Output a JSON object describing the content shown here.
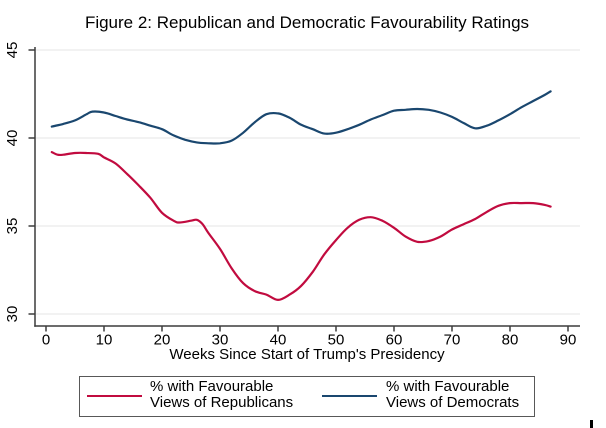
{
  "chart_data": {
    "type": "line",
    "title": "Figure 2: Republican and Democratic Favourability Ratings",
    "xlabel": "Weeks Since Start of Trump's Presidency",
    "ylabel": "",
    "xlim": [
      0,
      92
    ],
    "ylim": [
      29.3,
      45.3
    ],
    "x_ticks": [
      0,
      10,
      20,
      30,
      40,
      50,
      60,
      70,
      80,
      90
    ],
    "y_ticks": [
      30,
      35,
      40,
      45
    ],
    "grid": "horizontal-only",
    "legend_position": "bottom-box",
    "series": [
      {
        "name": "% with Favourable Views of Republicans",
        "color": "#C10B3F",
        "points": [
          [
            1,
            39.2
          ],
          [
            2,
            39.05
          ],
          [
            3,
            39.05
          ],
          [
            5,
            39.15
          ],
          [
            7,
            39.15
          ],
          [
            9,
            39.1
          ],
          [
            10,
            38.9
          ],
          [
            12,
            38.55
          ],
          [
            14,
            37.95
          ],
          [
            16,
            37.3
          ],
          [
            18,
            36.6
          ],
          [
            20,
            35.75
          ],
          [
            22,
            35.3
          ],
          [
            23,
            35.2
          ],
          [
            25,
            35.3
          ],
          [
            26,
            35.35
          ],
          [
            27,
            35.1
          ],
          [
            28,
            34.6
          ],
          [
            30,
            33.7
          ],
          [
            32,
            32.6
          ],
          [
            34,
            31.75
          ],
          [
            36,
            31.3
          ],
          [
            38,
            31.1
          ],
          [
            40,
            30.8
          ],
          [
            42,
            31.1
          ],
          [
            44,
            31.6
          ],
          [
            46,
            32.4
          ],
          [
            48,
            33.4
          ],
          [
            50,
            34.2
          ],
          [
            52,
            34.9
          ],
          [
            54,
            35.35
          ],
          [
            56,
            35.5
          ],
          [
            58,
            35.3
          ],
          [
            60,
            34.9
          ],
          [
            62,
            34.4
          ],
          [
            64,
            34.1
          ],
          [
            66,
            34.15
          ],
          [
            68,
            34.4
          ],
          [
            70,
            34.8
          ],
          [
            72,
            35.1
          ],
          [
            74,
            35.4
          ],
          [
            76,
            35.8
          ],
          [
            78,
            36.15
          ],
          [
            80,
            36.3
          ],
          [
            82,
            36.3
          ],
          [
            84,
            36.3
          ],
          [
            86,
            36.2
          ],
          [
            87,
            36.1
          ]
        ]
      },
      {
        "name": "% with Favourable Views of Democrats",
        "color": "#1A476F",
        "points": [
          [
            1,
            40.65
          ],
          [
            3,
            40.8
          ],
          [
            5,
            41.0
          ],
          [
            7,
            41.35
          ],
          [
            8,
            41.5
          ],
          [
            10,
            41.45
          ],
          [
            12,
            41.25
          ],
          [
            14,
            41.05
          ],
          [
            16,
            40.9
          ],
          [
            18,
            40.7
          ],
          [
            20,
            40.5
          ],
          [
            22,
            40.15
          ],
          [
            24,
            39.9
          ],
          [
            26,
            39.75
          ],
          [
            28,
            39.7
          ],
          [
            30,
            39.7
          ],
          [
            32,
            39.85
          ],
          [
            34,
            40.3
          ],
          [
            36,
            40.9
          ],
          [
            38,
            41.35
          ],
          [
            40,
            41.4
          ],
          [
            42,
            41.15
          ],
          [
            44,
            40.75
          ],
          [
            46,
            40.5
          ],
          [
            48,
            40.25
          ],
          [
            50,
            40.3
          ],
          [
            52,
            40.5
          ],
          [
            54,
            40.75
          ],
          [
            56,
            41.05
          ],
          [
            58,
            41.3
          ],
          [
            60,
            41.55
          ],
          [
            62,
            41.6
          ],
          [
            64,
            41.65
          ],
          [
            66,
            41.6
          ],
          [
            68,
            41.45
          ],
          [
            70,
            41.2
          ],
          [
            72,
            40.85
          ],
          [
            74,
            40.55
          ],
          [
            76,
            40.7
          ],
          [
            78,
            41.0
          ],
          [
            80,
            41.35
          ],
          [
            82,
            41.75
          ],
          [
            84,
            42.1
          ],
          [
            86,
            42.45
          ],
          [
            87,
            42.65
          ]
        ]
      }
    ]
  },
  "legend": {
    "entries": [
      {
        "line1": "% with Favourable",
        "line2": "Views of Republicans",
        "color": "#C10B3F"
      },
      {
        "line1": "% with Favourable",
        "line2": "Views of Democrats",
        "color": "#1A476F"
      }
    ]
  },
  "colors": {
    "republican_line": "#C10B3F",
    "democrat_line": "#1A476F",
    "gridline": "#E6E6E6",
    "axis": "#3C3C3C",
    "legend_border": "#585858",
    "background": "#FFFFFF"
  }
}
